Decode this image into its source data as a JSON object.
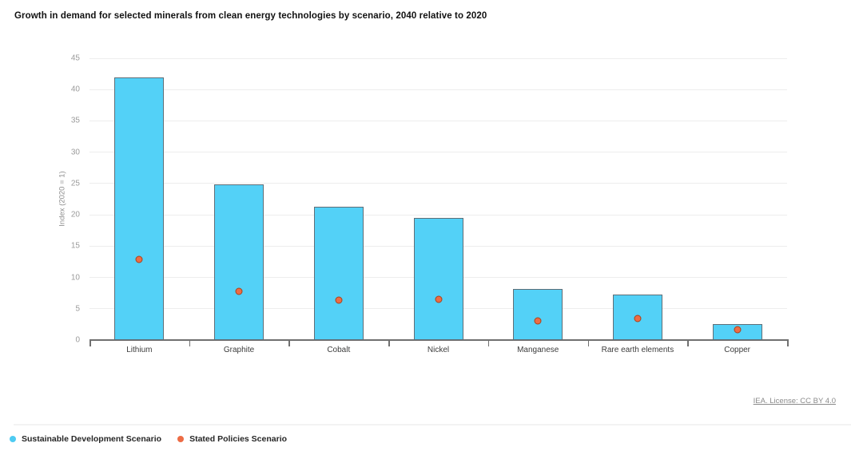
{
  "title": "Growth in demand for selected minerals from clean energy technologies by scenario, 2040 relative to 2020",
  "source": {
    "label": "IEA. License: CC BY 4.0"
  },
  "legend": {
    "items": [
      {
        "label": "Sustainable Development Scenario",
        "color": "#4ecbf2"
      },
      {
        "label": "Stated Policies Scenario",
        "color": "#ed6c45"
      }
    ]
  },
  "colors": {
    "bar_fill": "#53d1f7",
    "bar_border": "#5f6e77",
    "point_fill": "#ed6c45",
    "point_border": "#a8431c",
    "axis_line": "#707070",
    "gridline": "#ededed",
    "tick_label": "#9b9b9b",
    "category_label": "#3c3c3c"
  },
  "chart_data": {
    "type": "bar",
    "title": "Growth in demand for selected minerals from clean energy technologies by scenario, 2040 relative to 2020",
    "categories": [
      "Lithium",
      "Graphite",
      "Cobalt",
      "Nickel",
      "Manganese",
      "Rare earth elements",
      "Copper"
    ],
    "series": [
      {
        "name": "Sustainable Development Scenario",
        "type": "bar",
        "color": "#53d1f7",
        "values": [
          42.0,
          24.9,
          21.3,
          19.5,
          8.1,
          7.3,
          2.6
        ]
      },
      {
        "name": "Stated Policies Scenario",
        "type": "scatter",
        "color": "#ed6c45",
        "values": [
          12.9,
          7.8,
          6.4,
          6.5,
          3.0,
          3.4,
          1.7
        ]
      }
    ],
    "xlabel": "",
    "ylabel": "Index (2020 = 1)",
    "ylim": [
      0,
      45
    ],
    "yticks": [
      0,
      5,
      10,
      15,
      20,
      25,
      30,
      35,
      40,
      45
    ],
    "grid": true,
    "legend_position": "bottom-left"
  }
}
